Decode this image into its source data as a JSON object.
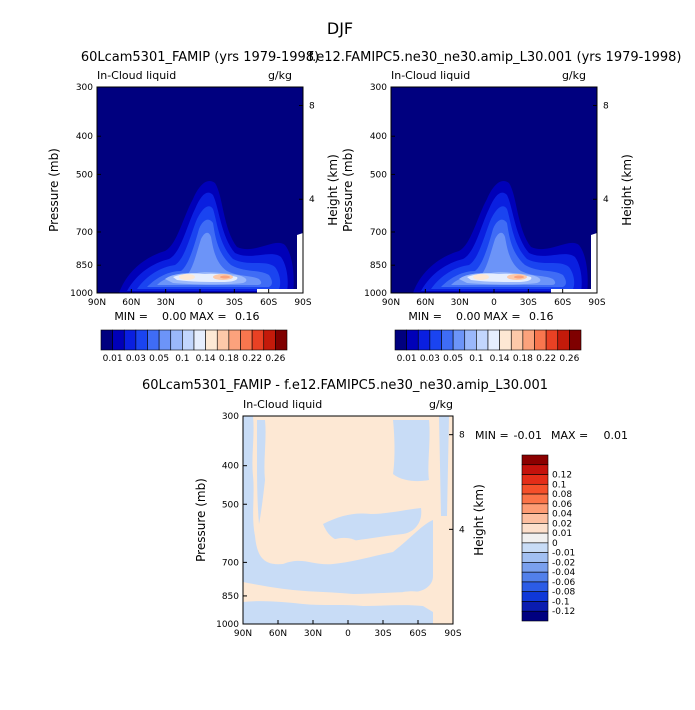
{
  "figure_title": "DJF",
  "chart_data": [
    {
      "type": "heatmap",
      "title": "60Lcam5301_FAMIP (yrs 1979-1998)",
      "left_label": "In-Cloud liquid",
      "right_label": "g/kg",
      "ylabel": "Pressure (mb)",
      "ylabel_right": "Height (km)",
      "xticks": [
        "90N",
        "60N",
        "30N",
        "0",
        "30S",
        "60S",
        "90S"
      ],
      "yticks": [
        "300",
        "400",
        "500",
        "700",
        "850",
        "1000"
      ],
      "yticks_right": [
        "8",
        "4"
      ],
      "stats": {
        "min_label": "MIN =",
        "min": "0.00",
        "max_label": "MAX =",
        "max": "0.16"
      },
      "colorbar": {
        "orientation": "horizontal",
        "colors": [
          "#00007f",
          "#0000b8",
          "#0a1fe0",
          "#1a44f0",
          "#3f6cf5",
          "#6c94f8",
          "#9ab8fb",
          "#c2d6fd",
          "#e6eefe",
          "#fde8d4",
          "#fdc9a9",
          "#fca27c",
          "#f9764e",
          "#e94124",
          "#c41a0a",
          "#7f0000"
        ],
        "labels": [
          "0.01",
          "0.03",
          "0.05",
          "0.1",
          "0.14",
          "0.18",
          "0.22",
          "0.26"
        ]
      }
    },
    {
      "type": "heatmap",
      "title": "f.e12.FAMIPC5.ne30_ne30.amip_L30.001 (yrs 1979-1998)",
      "left_label": "In-Cloud liquid",
      "right_label": "g/kg",
      "ylabel": "Pressure (mb)",
      "ylabel_right": "Height (km)",
      "xticks": [
        "90N",
        "60N",
        "30N",
        "0",
        "30S",
        "60S",
        "90S"
      ],
      "yticks": [
        "300",
        "400",
        "500",
        "700",
        "850",
        "1000"
      ],
      "yticks_right": [
        "8",
        "4"
      ],
      "stats": {
        "min_label": "MIN =",
        "min": "0.00",
        "max_label": "MAX =",
        "max": "0.16"
      },
      "colorbar": {
        "orientation": "horizontal",
        "colors": [
          "#00007f",
          "#0000b8",
          "#0a1fe0",
          "#1a44f0",
          "#3f6cf5",
          "#6c94f8",
          "#9ab8fb",
          "#c2d6fd",
          "#e6eefe",
          "#fde8d4",
          "#fdc9a9",
          "#fca27c",
          "#f9764e",
          "#e94124",
          "#c41a0a",
          "#7f0000"
        ],
        "labels": [
          "0.01",
          "0.03",
          "0.05",
          "0.1",
          "0.14",
          "0.18",
          "0.22",
          "0.26"
        ]
      }
    },
    {
      "type": "heatmap",
      "title": "60Lcam5301_FAMIP - f.e12.FAMIPC5.ne30_ne30.amip_L30.001",
      "left_label": "In-Cloud liquid",
      "right_label": "g/kg",
      "ylabel": "Pressure (mb)",
      "ylabel_right": "Height (km)",
      "xticks": [
        "90N",
        "60N",
        "30N",
        "0",
        "30S",
        "60S",
        "90S"
      ],
      "yticks": [
        "300",
        "400",
        "500",
        "700",
        "850",
        "1000"
      ],
      "yticks_right": [
        "8",
        "4"
      ],
      "stats": {
        "min_label": "MIN =",
        "min": "-0.01",
        "max_label": "MAX =",
        "max": "0.01"
      },
      "colorbar": {
        "orientation": "vertical",
        "colors": [
          "#8b0000",
          "#c4120c",
          "#e42d18",
          "#f5502a",
          "#fb7448",
          "#fd9c74",
          "#fdbfa0",
          "#fde0cc",
          "#f0f0f0",
          "#c8dcf6",
          "#a2c0f2",
          "#7aa0ee",
          "#5280ea",
          "#2c5ce6",
          "#0f38d8",
          "#0a1cb0",
          "#000080"
        ],
        "labels": [
          "0.12",
          "0.1",
          "0.08",
          "0.06",
          "0.04",
          "0.02",
          "0.01",
          "0",
          "-0.01",
          "-0.02",
          "-0.04",
          "-0.06",
          "-0.08",
          "-0.1",
          "-0.12"
        ]
      }
    }
  ]
}
